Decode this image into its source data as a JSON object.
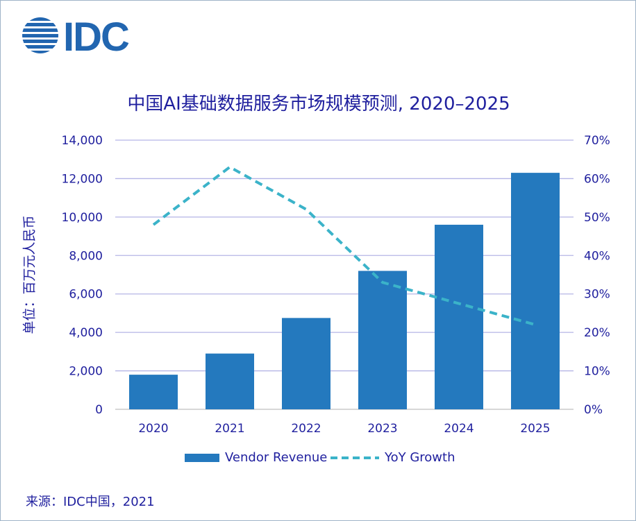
{
  "logo": {
    "text": "IDC",
    "color": "#2266b0"
  },
  "chart_data": {
    "type": "bar",
    "title": "中国AI基础数据服务市场规模预测, 2020–2025",
    "ylabel": "单位：百万元人民币",
    "categories": [
      "2020",
      "2021",
      "2022",
      "2023",
      "2024",
      "2025"
    ],
    "ylim": [
      0,
      14000
    ],
    "y2lim": [
      0,
      70
    ],
    "yticks": [
      "0",
      "2,000",
      "4,000",
      "6,000",
      "8,000",
      "10,000",
      "12,000",
      "14,000"
    ],
    "y2ticks": [
      "0%",
      "10%",
      "20%",
      "30%",
      "40%",
      "50%",
      "60%",
      "70%"
    ],
    "grid": true,
    "legend_placement": "bottom",
    "series": [
      {
        "name": "Vendor Revenue",
        "type": "bar",
        "axis": "left",
        "color": "#2479be",
        "values": [
          1800,
          2900,
          4750,
          7200,
          9600,
          12300
        ]
      },
      {
        "name": "YoY Growth",
        "type": "line",
        "style": "dashed",
        "axis": "right",
        "unit": "%",
        "color": "#3bb3c9",
        "values": [
          48,
          63,
          52,
          33,
          27.5,
          22
        ]
      }
    ]
  },
  "source": "来源：IDC中国，2021"
}
